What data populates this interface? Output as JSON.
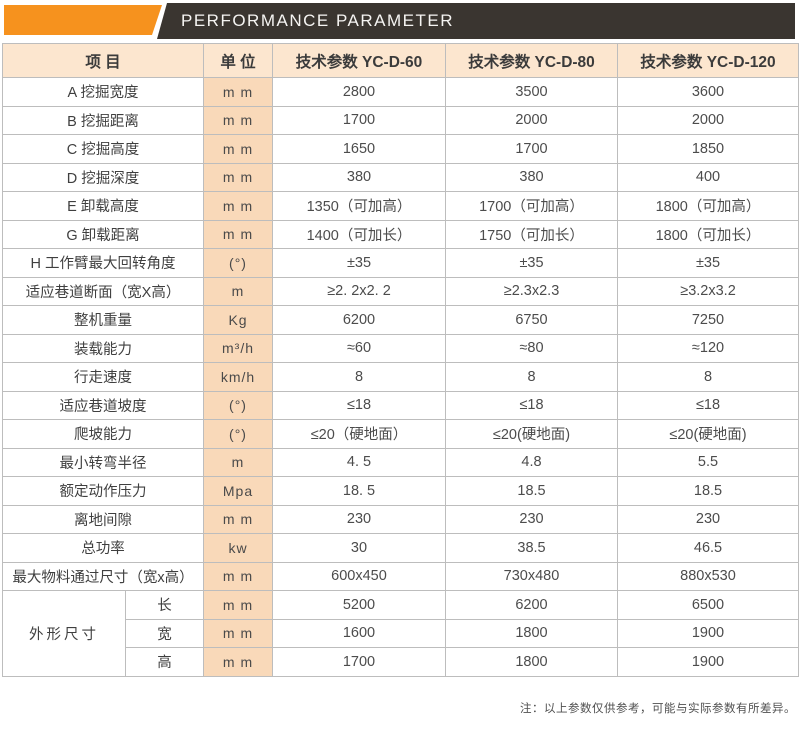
{
  "banner": {
    "title": "PERFORMANCE PARAMETER"
  },
  "colors": {
    "orange": "#f6921e",
    "dark": "#3a3530",
    "header-bg": "#fce6cf",
    "unit-bg": "#f9d9b9",
    "line": "#bdbdbd",
    "tan": "#dcba92"
  },
  "table": {
    "headers": {
      "item": "项  目",
      "unit": "单  位",
      "models": [
        "技术参数 YC-D-60",
        "技术参数 YC-D-80",
        "技术参数 YC-D-120"
      ]
    },
    "rows": [
      {
        "item": "A 挖掘宽度",
        "unit": "m m",
        "values": [
          "2800",
          "3500",
          "3600"
        ]
      },
      {
        "item": "B 挖掘距离",
        "unit": "m m",
        "values": [
          "1700",
          "2000",
          "2000"
        ]
      },
      {
        "item": "C 挖掘高度",
        "unit": "m m",
        "values": [
          "1650",
          "1700",
          "1850"
        ]
      },
      {
        "item": "D 挖掘深度",
        "unit": "m m",
        "values": [
          "380",
          "380",
          "400"
        ]
      },
      {
        "item": "E 卸载高度",
        "unit": "m m",
        "values": [
          "1350（可加高）",
          "1700（可加高）",
          "1800（可加高）"
        ]
      },
      {
        "item": "G 卸载距离",
        "unit": "m m",
        "values": [
          "1400（可加长）",
          "1750（可加长）",
          "1800（可加长）"
        ]
      },
      {
        "item": "H 工作臂最大回转角度",
        "unit": "(°)",
        "values": [
          "±35",
          "±35",
          "±35"
        ]
      },
      {
        "item": "适应巷道断面（宽X高）",
        "unit": "m",
        "values": [
          "≥2. 2x2. 2",
          "≥2.3x2.3",
          "≥3.2x3.2"
        ]
      },
      {
        "item": "整机重量",
        "unit": "Kg",
        "values": [
          "6200",
          "6750",
          "7250"
        ]
      },
      {
        "item": "装载能力",
        "unit": "m³/h",
        "values": [
          "≈60",
          "≈80",
          "≈120"
        ]
      },
      {
        "item": "行走速度",
        "unit": "km/h",
        "values": [
          "8",
          "8",
          "8"
        ]
      },
      {
        "item": "适应巷道坡度",
        "unit": "(°)",
        "values": [
          "≤18",
          "≤18",
          "≤18"
        ]
      },
      {
        "item": "爬坡能力",
        "unit": "(°)",
        "values": [
          "≤20（硬地面）",
          "≤20(硬地面)",
          "≤20(硬地面)"
        ]
      },
      {
        "item": "最小转弯半径",
        "unit": "m",
        "values": [
          "4. 5",
          "4.8",
          "5.5"
        ]
      },
      {
        "item": "额定动作压力",
        "unit": "Mpa",
        "values": [
          "18. 5",
          "18.5",
          "18.5"
        ]
      },
      {
        "item": "离地间隙",
        "unit": "m m",
        "values": [
          "230",
          "230",
          "230"
        ]
      },
      {
        "item": "总功率",
        "unit": "kw",
        "values": [
          "30",
          "38.5",
          "46.5"
        ]
      },
      {
        "item": "最大物料通过尺寸（宽x高）",
        "unit": "m m",
        "values": [
          "600x450",
          "730x480",
          "880x530"
        ]
      }
    ],
    "group": {
      "label": "外形尺寸",
      "rows": [
        {
          "item": "长",
          "unit": "m m",
          "values": [
            "5200",
            "6200",
            "6500"
          ]
        },
        {
          "item": "宽",
          "unit": "m m",
          "values": [
            "1600",
            "1800",
            "1900"
          ]
        },
        {
          "item": "高",
          "unit": "m m",
          "values": [
            "1700",
            "1800",
            "1900"
          ]
        }
      ]
    }
  },
  "footnote": "注：以上参数仅供参考，可能与实际参数有所差异。"
}
